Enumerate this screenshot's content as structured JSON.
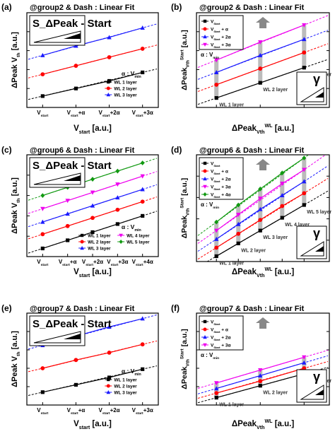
{
  "chart_data": [
    {
      "panel": "(a)",
      "title": "@group2 & Dash : Linear Fit",
      "type": "line",
      "ylabel": "ΔPeak V_th [a.u.]",
      "xlabel": "V_start [a.u.]",
      "categories": [
        "V_start",
        "V_start+α",
        "V_start+2α",
        "V_start+3α"
      ],
      "slope_label": "S_ΔPeak - Start",
      "note": "α : V_min",
      "series": [
        {
          "name": "WL 1 layer",
          "marker": "square",
          "color": "#000000",
          "values": [
            0.12,
            0.2,
            0.28,
            0.37
          ]
        },
        {
          "name": "WL 2 layer",
          "marker": "circle",
          "color": "#ff0000",
          "values": [
            0.35,
            0.44,
            0.53,
            0.62
          ]
        },
        {
          "name": "WL 3 layer",
          "marker": "triangle",
          "color": "#1a1aff",
          "values": [
            0.55,
            0.65,
            0.74,
            0.84
          ]
        }
      ],
      "ylim": [
        0,
        1
      ]
    },
    {
      "panel": "(b)",
      "title": "@group2 & Dash : Linear Fit",
      "type": "line",
      "ylabel": "ΔPeak_V_th^Start [a.u.]",
      "xlabel": "ΔPeak_V_th^WL [a.u.]",
      "categories": [
        "WL 1 layer",
        "WL 2 layer",
        "WL 3 layer"
      ],
      "note": "α : V_min",
      "gamma_label": "γ",
      "series": [
        {
          "name": "V_Start",
          "marker": "square",
          "color": "#000000",
          "values": [
            0.1,
            0.26,
            0.42
          ]
        },
        {
          "name": "V_Start + α",
          "marker": "circle",
          "color": "#ff0000",
          "values": [
            0.24,
            0.41,
            0.58
          ]
        },
        {
          "name": "V_Start + 2α",
          "marker": "triangle",
          "color": "#1a1aff",
          "values": [
            0.37,
            0.55,
            0.72
          ]
        },
        {
          "name": "V_Start + 3α",
          "marker": "triangle-down",
          "color": "#ee00ee",
          "values": [
            0.5,
            0.69,
            0.87
          ]
        }
      ],
      "ylim": [
        0,
        1
      ]
    },
    {
      "panel": "(c)",
      "title": "@group6 & Dash : Linear Fit",
      "type": "line",
      "ylabel": "ΔPeak V_th [a.u.]",
      "xlabel": "V_start [a.u.]",
      "categories": [
        "V_start",
        "V_start+α",
        "V_start+2α",
        "V_start+3α",
        "V_start+4α"
      ],
      "slope_label": "S_ΔPeak - Start",
      "note": "α : V_min",
      "series": [
        {
          "name": "WL 1 layer",
          "marker": "square",
          "color": "#000000",
          "values": [
            0.08,
            0.16,
            0.24,
            0.32,
            0.4
          ]
        },
        {
          "name": "WL 2 layer",
          "marker": "circle",
          "color": "#ff0000",
          "values": [
            0.22,
            0.3,
            0.38,
            0.46,
            0.54
          ]
        },
        {
          "name": "WL 3 layer",
          "marker": "triangle",
          "color": "#1a1aff",
          "values": [
            0.34,
            0.42,
            0.5,
            0.58,
            0.66
          ]
        },
        {
          "name": "WL 4 layer",
          "marker": "triangle-down",
          "color": "#ee00ee",
          "values": [
            0.47,
            0.55,
            0.63,
            0.71,
            0.79
          ]
        },
        {
          "name": "WL 5 layer",
          "marker": "diamond",
          "color": "#119911",
          "values": [
            0.6,
            0.68,
            0.76,
            0.84,
            0.92
          ]
        }
      ],
      "ylim": [
        0,
        1
      ]
    },
    {
      "panel": "(d)",
      "title": "@group6 & Dash : Linear Fit",
      "type": "line",
      "ylabel": "ΔPeak_V_th^Start [a.u.]",
      "xlabel": "ΔPeak_V_th^WL [a.u.]",
      "categories": [
        "WL 1 layer",
        "WL 2 layer",
        "WL 3 layer",
        "WL 4 layer",
        "WL 5 layer"
      ],
      "note": "α : V_min",
      "gamma_label": "γ",
      "series": [
        {
          "name": "V_Start",
          "marker": "square",
          "color": "#000000",
          "values": [
            0.05,
            0.17,
            0.29,
            0.41,
            0.53
          ]
        },
        {
          "name": "V_Start + α",
          "marker": "circle",
          "color": "#ff0000",
          "values": [
            0.13,
            0.26,
            0.39,
            0.52,
            0.64
          ]
        },
        {
          "name": "V_Start + 2α",
          "marker": "triangle",
          "color": "#1a1aff",
          "values": [
            0.21,
            0.35,
            0.49,
            0.62,
            0.75
          ]
        },
        {
          "name": "V_Start + 3α",
          "marker": "triangle-down",
          "color": "#ee00ee",
          "values": [
            0.29,
            0.44,
            0.59,
            0.73,
            0.86
          ]
        },
        {
          "name": "V_Start + 4α",
          "marker": "diamond",
          "color": "#119911",
          "values": [
            0.37,
            0.53,
            0.68,
            0.83,
            0.97
          ]
        }
      ],
      "ylim": [
        0,
        1
      ]
    },
    {
      "panel": "(e)",
      "title": "@group7 & Dash : Linear Fit",
      "type": "line",
      "ylabel": "ΔPeak V_th [a.u.]",
      "xlabel": "V_start [a.u.]",
      "categories": [
        "V_start",
        "V_start+α",
        "V_start+2α",
        "V_start+3α"
      ],
      "slope_label": "S_ΔPeak - Start",
      "note": "α : V_min",
      "series": [
        {
          "name": "WL 1 layer",
          "marker": "square",
          "color": "#000000",
          "values": [
            0.14,
            0.22,
            0.3,
            0.39
          ]
        },
        {
          "name": "WL 2 layer",
          "marker": "circle",
          "color": "#ff0000",
          "values": [
            0.4,
            0.49,
            0.57,
            0.66
          ]
        },
        {
          "name": "WL 3 layer",
          "marker": "triangle",
          "color": "#1a1aff",
          "values": [
            0.65,
            0.75,
            0.85,
            0.94
          ]
        }
      ],
      "ylim": [
        0,
        1
      ]
    },
    {
      "panel": "(f)",
      "title": "@group7 & Dash : Linear Fit",
      "type": "line",
      "ylabel": "ΔPeak_V_th^Start [a.u.]",
      "xlabel": "ΔPeak_V_th^WL [a.u.]",
      "categories": [
        "WL 1 layer",
        "WL 2 layer",
        "WL 3 layer"
      ],
      "note": "α : V_min",
      "gamma_label": "γ",
      "series": [
        {
          "name": "V_Start",
          "marker": "square",
          "color": "#000000",
          "values": [
            0.08,
            0.21,
            0.34
          ]
        },
        {
          "name": "V_Start + α",
          "marker": "circle",
          "color": "#ff0000",
          "values": [
            0.13,
            0.26,
            0.4
          ]
        },
        {
          "name": "V_Start + 2α",
          "marker": "triangle",
          "color": "#1a1aff",
          "values": [
            0.18,
            0.32,
            0.46
          ]
        },
        {
          "name": "V_Start + 3α",
          "marker": "triangle-down",
          "color": "#ee00ee",
          "values": [
            0.24,
            0.38,
            0.52
          ]
        }
      ],
      "ylim": [
        0,
        1
      ]
    }
  ]
}
